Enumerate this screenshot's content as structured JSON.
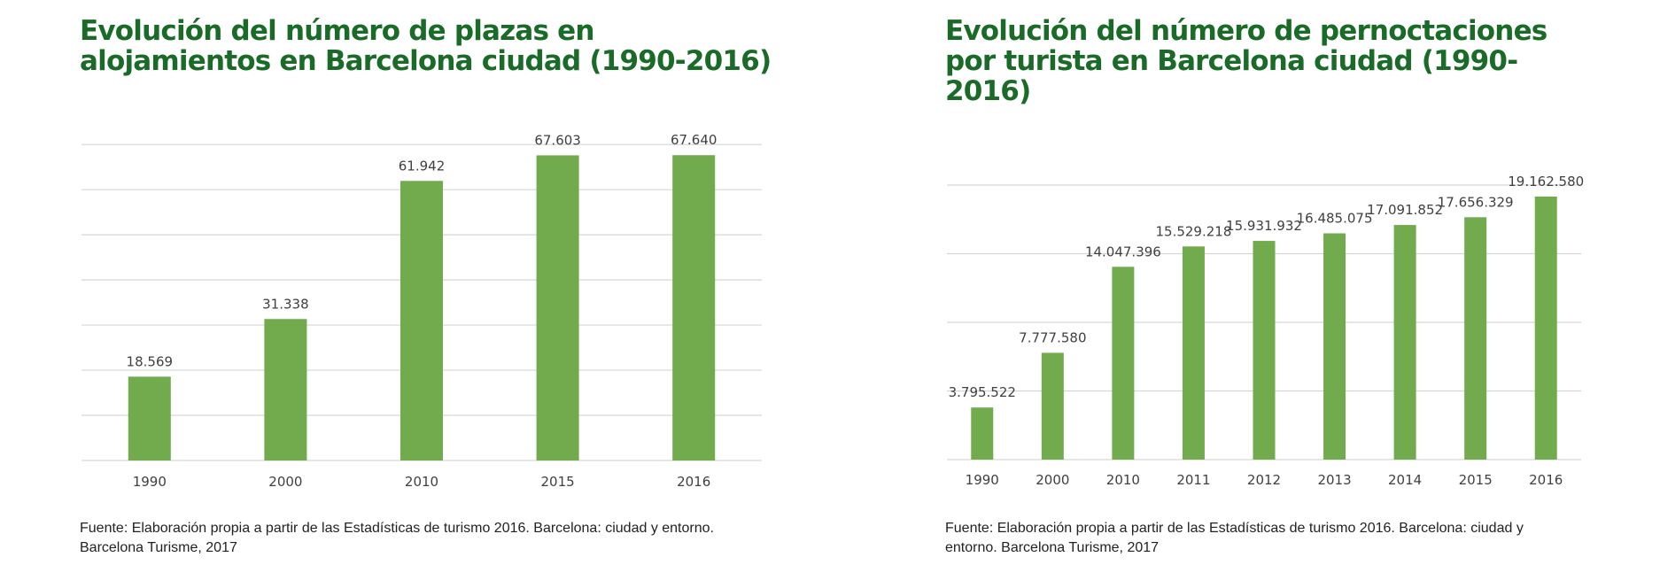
{
  "chart_data": [
    {
      "type": "bar",
      "title": "Evolución del número de plazas en alojamientos en Barcelona ciudad (1990-2016)",
      "categories": [
        "1990",
        "2000",
        "2010",
        "2015",
        "2016"
      ],
      "values": [
        18569,
        31338,
        61942,
        67603,
        67640
      ],
      "value_labels": [
        "18.569",
        "31.338",
        "61.942",
        "67.603",
        "67.640"
      ],
      "ylim": [
        0,
        70000
      ],
      "gridlines": true,
      "source": "Fuente: Elaboración propia a partir de las Estadísticas de turismo 2016. Barcelona: ciudad y entorno. Barcelona Turisme, 2017",
      "colors": {
        "bar": "#71ab4e",
        "title": "#1a6a28",
        "grid": "#d6d6d6"
      }
    },
    {
      "type": "bar",
      "title": "Evolución del número de pernoctaciones por turista en Barcelona ciudad (1990-2016)",
      "categories": [
        "1990",
        "2000",
        "2010",
        "2011",
        "2012",
        "2013",
        "2014",
        "2015",
        "2016"
      ],
      "values": [
        3795522,
        7777580,
        14047396,
        15529218,
        15931932,
        16485075,
        17091852,
        17656329,
        19162580
      ],
      "value_labels": [
        "3.795.522",
        "7.777.580",
        "14.047.396",
        "15.529.218",
        "15.931.932",
        "16.485.075",
        "17.091.852",
        "17.656.329",
        "19.162.580"
      ],
      "ylim": [
        0,
        20000000
      ],
      "gridlines": true,
      "source": "Fuente: Elaboración propia a partir de las Estadísticas de turismo 2016. Barcelona: ciudad y entorno. Barcelona Turisme, 2017",
      "colors": {
        "bar": "#71ab4e",
        "title": "#1a6a28",
        "grid": "#d6d6d6"
      }
    }
  ]
}
